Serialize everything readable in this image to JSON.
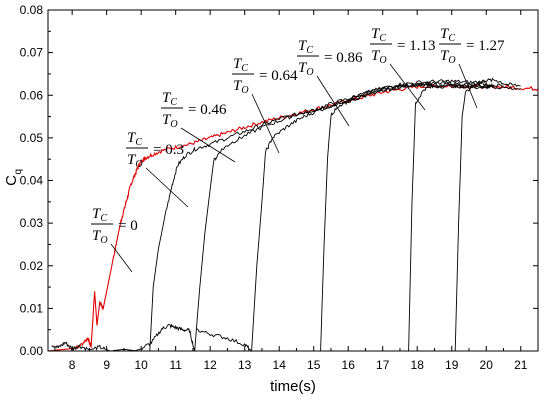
{
  "chart_data": {
    "type": "line",
    "xlabel": "time(s)",
    "ylabel": "C",
    "ylabel_subscript": "q",
    "xlim": [
      7.3,
      21.5
    ],
    "ylim": [
      0.0,
      0.08
    ],
    "x_ticks": [
      8,
      9,
      10,
      11,
      12,
      13,
      14,
      15,
      16,
      17,
      18,
      19,
      20,
      21
    ],
    "y_ticks": [
      "0.00",
      "0.01",
      "0.02",
      "0.03",
      "0.04",
      "0.05",
      "0.06",
      "0.07",
      "0.08"
    ],
    "grid": false,
    "ratio": {
      "numerator": "T",
      "numerator_sub": "C",
      "denominator": "T",
      "denominator_sub": "O"
    },
    "annotations": [
      {
        "value": "0",
        "x": 9.1,
        "y": 0.0288
      },
      {
        "value": "0.3",
        "x": 9.85,
        "y": 0.0372
      },
      {
        "value": "0.46",
        "x": 12.0,
        "y": 0.047
      },
      {
        "value": "0.64",
        "x": 13.4,
        "y": 0.0495
      },
      {
        "value": "0.86",
        "x": 15.3,
        "y": 0.0555
      },
      {
        "value": "1.13",
        "x": 17.85,
        "y": 0.0595
      },
      {
        "value": "1.27",
        "x": 19.25,
        "y": 0.0608
      }
    ],
    "series": [
      {
        "color": "#e00000",
        "points": [
          [
            7.3,
            0.0
          ],
          [
            7.9,
            0.0005
          ],
          [
            8.2,
            0.001
          ],
          [
            8.45,
            0.003
          ],
          [
            8.55,
            0.001
          ],
          [
            8.65,
            0.014
          ],
          [
            8.72,
            0.006
          ],
          [
            8.8,
            0.0115
          ],
          [
            8.9,
            0.01
          ],
          [
            9.0,
            0.014
          ],
          [
            9.1,
            0.018
          ],
          [
            9.2,
            0.022
          ],
          [
            9.3,
            0.026
          ],
          [
            9.4,
            0.03
          ],
          [
            9.5,
            0.033
          ],
          [
            9.6,
            0.036
          ],
          [
            9.7,
            0.039
          ],
          [
            9.8,
            0.041
          ],
          [
            9.9,
            0.043
          ],
          [
            10.0,
            0.0445
          ],
          [
            10.1,
            0.0452
          ],
          [
            10.3,
            0.046
          ],
          [
            10.6,
            0.047
          ],
          [
            11.0,
            0.0478
          ],
          [
            11.4,
            0.0485
          ],
          [
            11.8,
            0.0495
          ],
          [
            12.2,
            0.0505
          ],
          [
            12.6,
            0.0515
          ],
          [
            13.0,
            0.0525
          ],
          [
            13.5,
            0.0537
          ],
          [
            14.0,
            0.0547
          ],
          [
            14.5,
            0.0557
          ],
          [
            15.0,
            0.0567
          ],
          [
            15.5,
            0.0577
          ],
          [
            16.0,
            0.0588
          ],
          [
            16.5,
            0.0597
          ],
          [
            17.0,
            0.0607
          ],
          [
            17.5,
            0.0614
          ],
          [
            18.0,
            0.062
          ],
          [
            18.5,
            0.0622
          ],
          [
            19.0,
            0.0622
          ],
          [
            19.5,
            0.0621
          ],
          [
            20.0,
            0.062
          ],
          [
            20.5,
            0.062
          ],
          [
            21.0,
            0.0617
          ],
          [
            21.5,
            0.0615
          ]
        ]
      },
      {
        "color": "#000000",
        "points": [
          [
            7.4,
            0.0015
          ],
          [
            7.6,
            0.0008
          ],
          [
            7.8,
            0.002
          ],
          [
            8.0,
            0.0005
          ],
          [
            8.2,
            0.0012
          ],
          [
            8.5,
            0.0003
          ],
          [
            8.8,
            0.0009
          ],
          [
            9.1,
            0.0
          ],
          [
            9.5,
            0.0004
          ],
          [
            9.9,
            0.0
          ],
          [
            10.25,
            0.0
          ],
          [
            10.35,
            0.015
          ],
          [
            10.5,
            0.024
          ],
          [
            10.7,
            0.032
          ],
          [
            10.9,
            0.039
          ],
          [
            11.05,
            0.0435
          ],
          [
            11.3,
            0.046
          ],
          [
            11.6,
            0.0475
          ],
          [
            12.0,
            0.0485
          ],
          [
            12.5,
            0.05
          ],
          [
            13.0,
            0.0515
          ],
          [
            13.5,
            0.053
          ],
          [
            14.0,
            0.0545
          ],
          [
            14.5,
            0.0555
          ],
          [
            15.0,
            0.0565
          ],
          [
            15.5,
            0.0575
          ],
          [
            16.0,
            0.0587
          ],
          [
            16.5,
            0.06
          ],
          [
            17.0,
            0.0612
          ],
          [
            17.5,
            0.062
          ],
          [
            18.0,
            0.0625
          ],
          [
            18.5,
            0.0625
          ],
          [
            19.0,
            0.0622
          ],
          [
            19.5,
            0.062
          ],
          [
            20.0,
            0.062
          ],
          [
            20.2,
            0.0622
          ]
        ]
      },
      {
        "color": "#000000",
        "points": [
          [
            9.8,
            0.0
          ],
          [
            10.0,
            0.0005
          ],
          [
            10.3,
            0.002
          ],
          [
            10.6,
            0.0052
          ],
          [
            10.8,
            0.006
          ],
          [
            11.0,
            0.0055
          ],
          [
            11.2,
            0.005
          ],
          [
            11.4,
            0.0048
          ],
          [
            11.55,
            0.0
          ],
          [
            11.7,
            0.015
          ],
          [
            11.85,
            0.028
          ],
          [
            12.0,
            0.038
          ],
          [
            12.1,
            0.0445
          ],
          [
            12.3,
            0.047
          ],
          [
            12.6,
            0.0488
          ],
          [
            13.0,
            0.0505
          ],
          [
            13.5,
            0.0525
          ],
          [
            14.0,
            0.054
          ],
          [
            14.5,
            0.0555
          ],
          [
            15.0,
            0.0565
          ],
          [
            15.5,
            0.058
          ],
          [
            16.0,
            0.0592
          ],
          [
            16.5,
            0.0605
          ],
          [
            17.0,
            0.0615
          ],
          [
            17.5,
            0.0622
          ],
          [
            18.0,
            0.0625
          ],
          [
            18.5,
            0.0628
          ],
          [
            19.0,
            0.0628
          ],
          [
            19.5,
            0.0626
          ],
          [
            20.0,
            0.0625
          ]
        ]
      },
      {
        "color": "#000000",
        "points": [
          [
            11.6,
            0.005
          ],
          [
            12.0,
            0.004
          ],
          [
            12.5,
            0.003
          ],
          [
            13.0,
            0.0015
          ],
          [
            13.2,
            0.0
          ],
          [
            13.35,
            0.02
          ],
          [
            13.5,
            0.035
          ],
          [
            13.6,
            0.0465
          ],
          [
            13.8,
            0.05
          ],
          [
            14.2,
            0.0525
          ],
          [
            14.6,
            0.0545
          ],
          [
            15.0,
            0.056
          ],
          [
            15.5,
            0.0575
          ],
          [
            16.0,
            0.059
          ],
          [
            16.5,
            0.0605
          ],
          [
            17.0,
            0.0617
          ],
          [
            17.5,
            0.0625
          ],
          [
            18.0,
            0.063
          ],
          [
            18.5,
            0.0632
          ],
          [
            19.0,
            0.0633
          ],
          [
            19.5,
            0.063
          ],
          [
            20.0,
            0.0632
          ]
        ]
      },
      {
        "color": "#000000",
        "points": [
          [
            13.3,
            0.0
          ],
          [
            14.0,
            0.0
          ],
          [
            14.6,
            0.0
          ],
          [
            15.2,
            0.0
          ],
          [
            15.3,
            0.025
          ],
          [
            15.4,
            0.045
          ],
          [
            15.5,
            0.0555
          ],
          [
            15.7,
            0.057
          ],
          [
            16.0,
            0.0585
          ],
          [
            16.5,
            0.06
          ],
          [
            17.0,
            0.0612
          ],
          [
            17.5,
            0.062
          ],
          [
            18.0,
            0.0625
          ],
          [
            18.5,
            0.0625
          ],
          [
            19.0,
            0.0622
          ],
          [
            19.5,
            0.0622
          ],
          [
            20.0,
            0.0625
          ],
          [
            20.5,
            0.0622
          ]
        ]
      },
      {
        "color": "#000000",
        "points": [
          [
            15.4,
            0.0
          ],
          [
            16.0,
            0.0
          ],
          [
            16.8,
            0.0
          ],
          [
            17.75,
            0.0
          ],
          [
            17.85,
            0.035
          ],
          [
            17.95,
            0.058
          ],
          [
            18.2,
            0.0615
          ],
          [
            18.5,
            0.062
          ],
          [
            19.0,
            0.0622
          ],
          [
            19.5,
            0.062
          ],
          [
            20.0,
            0.062
          ],
          [
            20.5,
            0.0618
          ],
          [
            21.0,
            0.0615
          ]
        ]
      },
      {
        "color": "#000000",
        "points": [
          [
            18.0,
            0.0
          ],
          [
            18.6,
            0.0
          ],
          [
            19.1,
            0.0
          ],
          [
            19.2,
            0.03
          ],
          [
            19.3,
            0.055
          ],
          [
            19.4,
            0.0605
          ],
          [
            19.7,
            0.0628
          ],
          [
            20.0,
            0.0635
          ],
          [
            20.3,
            0.0635
          ],
          [
            20.6,
            0.0625
          ],
          [
            21.0,
            0.0622
          ]
        ]
      }
    ]
  }
}
